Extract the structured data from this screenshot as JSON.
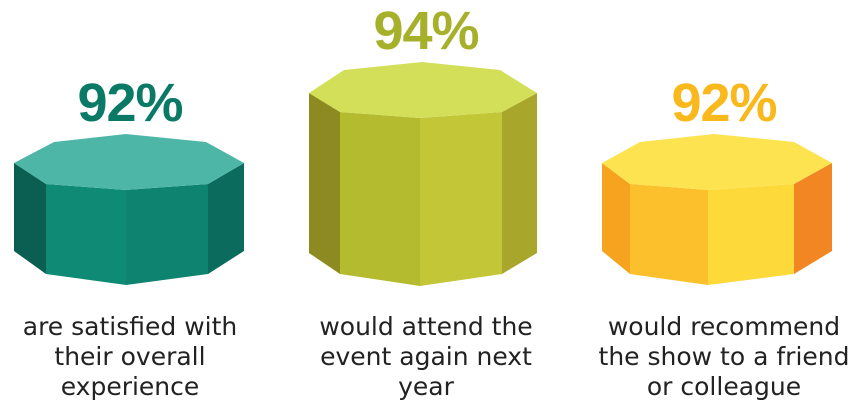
{
  "chart_data": {
    "type": "bar",
    "style": "3d-octagonal-prism",
    "categories": [
      "are satisfied with their overall experience",
      "would attend the event again next year",
      "would recommend the show to a friend or colleague"
    ],
    "values": [
      92,
      94,
      92
    ],
    "value_labels": [
      "92%",
      "94%",
      "92%"
    ],
    "captions": [
      [
        "are satisfied with",
        "their overall",
        "experience"
      ],
      [
        "would attend the",
        "event again next",
        "year"
      ],
      [
        "would recommend",
        "the show to a friend",
        "or colleague"
      ]
    ],
    "colors": {
      "teal": {
        "label": "#0a7a66",
        "top": "#4db6a7",
        "front_left": "#0e8a75",
        "front_right": "#0d8370",
        "side_left": "#0b5e52",
        "side_right": "#0b6c5e"
      },
      "olive": {
        "label": "#a7b02a",
        "top": "#d3df58",
        "front_left": "#b5bb2f",
        "front_right": "#c3c636",
        "side_left": "#8c8a20",
        "side_right": "#a9a62c"
      },
      "yellow": {
        "label": "#f9b81b",
        "top": "#fde34f",
        "front_left": "#fbc02c",
        "front_right": "#fdd93a",
        "side_left": "#f6a41f",
        "side_right": "#f28622"
      }
    },
    "title": "",
    "xlabel": "",
    "ylabel": "",
    "grid": false,
    "legend": "none"
  }
}
